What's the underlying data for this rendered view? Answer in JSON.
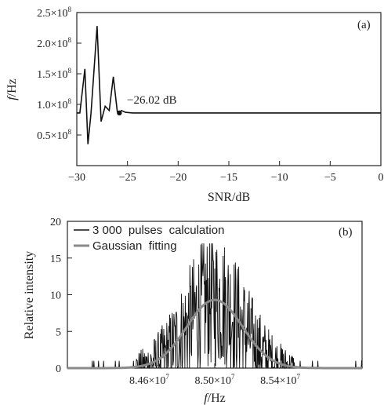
{
  "chart_data": [
    {
      "panel_label": "(a)",
      "type": "line",
      "xlabel": "SNR/dB",
      "ylabel_italic": "f",
      "ylabel_unit": "/Hz",
      "xlim": [
        -30,
        0
      ],
      "ylim": [
        0,
        250000000.0
      ],
      "x_ticks": [
        -30,
        -25,
        -20,
        -15,
        -10,
        -5,
        0
      ],
      "x_tick_labels": [
        "−30",
        "−25",
        "−20",
        "−15",
        "−10",
        "−5",
        "0"
      ],
      "y_ticks": [
        0,
        50000000.0,
        100000000.0,
        150000000.0,
        200000000.0,
        250000000.0
      ],
      "y_tick_mantissas": [
        "",
        "0.5×10",
        "1.0×10",
        "1.5×10",
        "2.0×10",
        "2.5×10"
      ],
      "y_tick_exponent": "8",
      "annotation": {
        "text": "−26.02 dB",
        "x": -25.8,
        "y": 86000000.0
      },
      "series": [
        {
          "x": [
            -30,
            -29.7,
            -29.2,
            -28.9,
            -28.6,
            -28.0,
            -27.6,
            -27.2,
            -26.8,
            -26.4,
            -26.0,
            -25.8,
            -25.6,
            -25.2,
            -24.5,
            -23,
            -20,
            -15,
            -10,
            -5,
            0
          ],
          "y": [
            86000000.0,
            86000000.0,
            158000000.0,
            35000000.0,
            85000000.0,
            228000000.0,
            72000000.0,
            97000000.0,
            90000000.0,
            145000000.0,
            88000000.0,
            86000000.0,
            90000000.0,
            87000000.0,
            86000000.0,
            86000000.0,
            86000000.0,
            86000000.0,
            86000000.0,
            86000000.0,
            86000000.0
          ]
        }
      ]
    },
    {
      "panel_label": "(b)",
      "type": "line",
      "xlabel_italic": "f",
      "xlabel_unit": "/Hz",
      "ylabel": "Relative intensity",
      "xlim": [
        84100000.0,
        85900000.0
      ],
      "ylim": [
        0,
        20
      ],
      "x_ticks": [
        84600000.0,
        85000000.0,
        85400000.0
      ],
      "x_tick_mantissas": [
        "8.46×10",
        "8.50×10",
        "8.54×10"
      ],
      "x_tick_exponent": "7",
      "y_ticks": [
        0,
        5,
        10,
        15,
        20
      ],
      "y_tick_labels": [
        "0",
        "5",
        "10",
        "15",
        "20"
      ],
      "legend_position": "top-left",
      "series": [
        {
          "name": "3 000  pulses  calculation",
          "color": "#111111",
          "center": 85000000.0,
          "sigma": 170000.0,
          "amplitude": 9.3
        },
        {
          "name": "Gaussian  fitting",
          "color": "#8a8a8a",
          "center": 85000000.0,
          "sigma": 170000.0,
          "amplitude": 9.3
        }
      ]
    }
  ]
}
